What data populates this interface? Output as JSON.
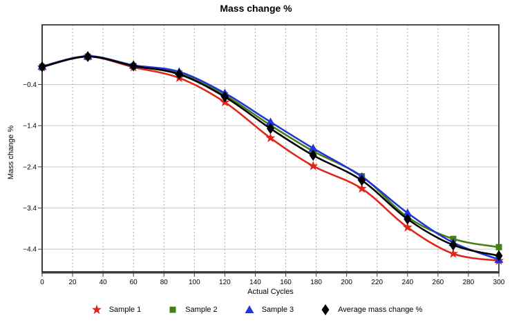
{
  "chart_data": {
    "type": "line",
    "title": "Mass change %",
    "xlabel": "Actual Cycles",
    "ylabel": "Mass change %",
    "smooth": true,
    "grid": {
      "horizontal": "solid",
      "vertical": "dashed"
    },
    "legend_position": "bottom",
    "xlim": [
      0,
      300
    ],
    "ylim": [
      -4.95,
      1.05
    ],
    "x_ticks": [
      0,
      20,
      40,
      60,
      80,
      100,
      120,
      140,
      160,
      180,
      200,
      220,
      240,
      260,
      280,
      300
    ],
    "x_tick_labels": [
      "0",
      "20",
      "40",
      "60",
      "80",
      "100",
      "120",
      "140",
      "160",
      "180",
      "200",
      "220",
      "240",
      "260",
      "280",
      "300"
    ],
    "y_ticks": [
      -0.4,
      -1.4,
      -2.4,
      -3.4,
      -4.4
    ],
    "y_tick_labels": [
      "−0.4",
      "−1.4",
      "−2.4",
      "−3.4",
      "−4.4"
    ],
    "x": [
      0,
      30,
      60,
      90,
      120,
      150,
      178,
      210,
      240,
      270,
      300
    ],
    "series": [
      {
        "name": "Sample 1",
        "marker": "star",
        "color": "#e0261b",
        "values": [
          0.02,
          0.28,
          0.02,
          -0.24,
          -0.83,
          -1.7,
          -2.38,
          -2.93,
          -3.87,
          -4.51,
          -4.68
        ]
      },
      {
        "name": "Sample 2",
        "marker": "square",
        "color": "#447e14",
        "values": [
          0.03,
          0.28,
          0.05,
          -0.13,
          -0.66,
          -1.39,
          -2.02,
          -2.63,
          -3.62,
          -4.15,
          -4.35
        ]
      },
      {
        "name": "Sample 3",
        "marker": "triangle",
        "color": "#2236d8",
        "values": [
          0.04,
          0.29,
          0.07,
          -0.09,
          -0.61,
          -1.31,
          -1.95,
          -2.64,
          -3.52,
          -4.24,
          -4.65
        ]
      },
      {
        "name": "Average mass change %",
        "marker": "diamond",
        "color": "#000000",
        "values": [
          0.03,
          0.28,
          0.05,
          -0.15,
          -0.7,
          -1.47,
          -2.12,
          -2.73,
          -3.67,
          -4.3,
          -4.56
        ]
      }
    ],
    "colors": {
      "frame": "#4d4d4d",
      "axis": "#3c3c3c",
      "grid_h": "#c9c9c9",
      "grid_v": "#a8a8a8",
      "tick_text": "#000000"
    }
  }
}
